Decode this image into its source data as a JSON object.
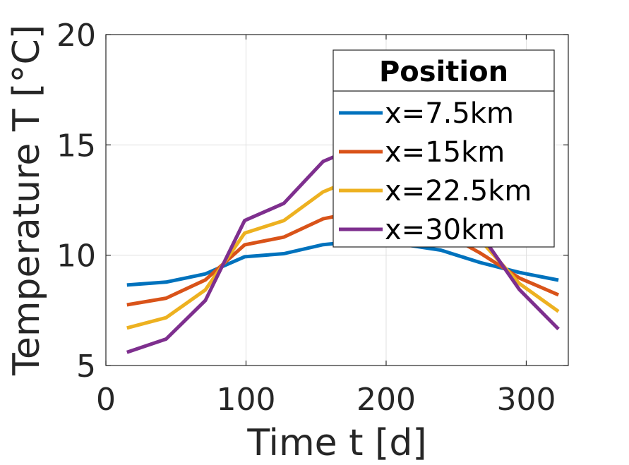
{
  "chart_data": {
    "type": "line",
    "xlabel": "Time t [d]",
    "ylabel": "Temperature T [°C]",
    "xlim": [
      0,
      330
    ],
    "ylim": [
      5,
      20
    ],
    "xticks": [
      0,
      100,
      200,
      300
    ],
    "yticks": [
      5,
      10,
      15,
      20
    ],
    "grid": true,
    "legend": {
      "title": "Position",
      "placement": "top-right"
    },
    "x": [
      15,
      43,
      71,
      99,
      127,
      155,
      183,
      211,
      239,
      267,
      295,
      323
    ],
    "series": [
      {
        "name": "x=7.5km",
        "color": "#0072BD",
        "values": [
          8.65,
          8.78,
          9.15,
          9.93,
          10.07,
          10.48,
          10.65,
          10.5,
          10.23,
          9.67,
          9.22,
          8.87
        ]
      },
      {
        "name": "x=15km",
        "color": "#D95319",
        "values": [
          7.75,
          8.05,
          8.88,
          10.47,
          10.82,
          11.65,
          12.0,
          11.6,
          11.1,
          10.1,
          8.97,
          8.2
        ]
      },
      {
        "name": "x=22.5km",
        "color": "#EDB120",
        "values": [
          6.7,
          7.17,
          8.43,
          11.0,
          11.57,
          12.87,
          13.6,
          13.2,
          12.3,
          10.7,
          8.72,
          7.45
        ]
      },
      {
        "name": "x=30km",
        "color": "#7E2F8E",
        "values": [
          5.6,
          6.2,
          7.95,
          11.57,
          12.35,
          14.25,
          15.0,
          14.3,
          13.1,
          11.0,
          8.45,
          6.65
        ]
      }
    ]
  }
}
